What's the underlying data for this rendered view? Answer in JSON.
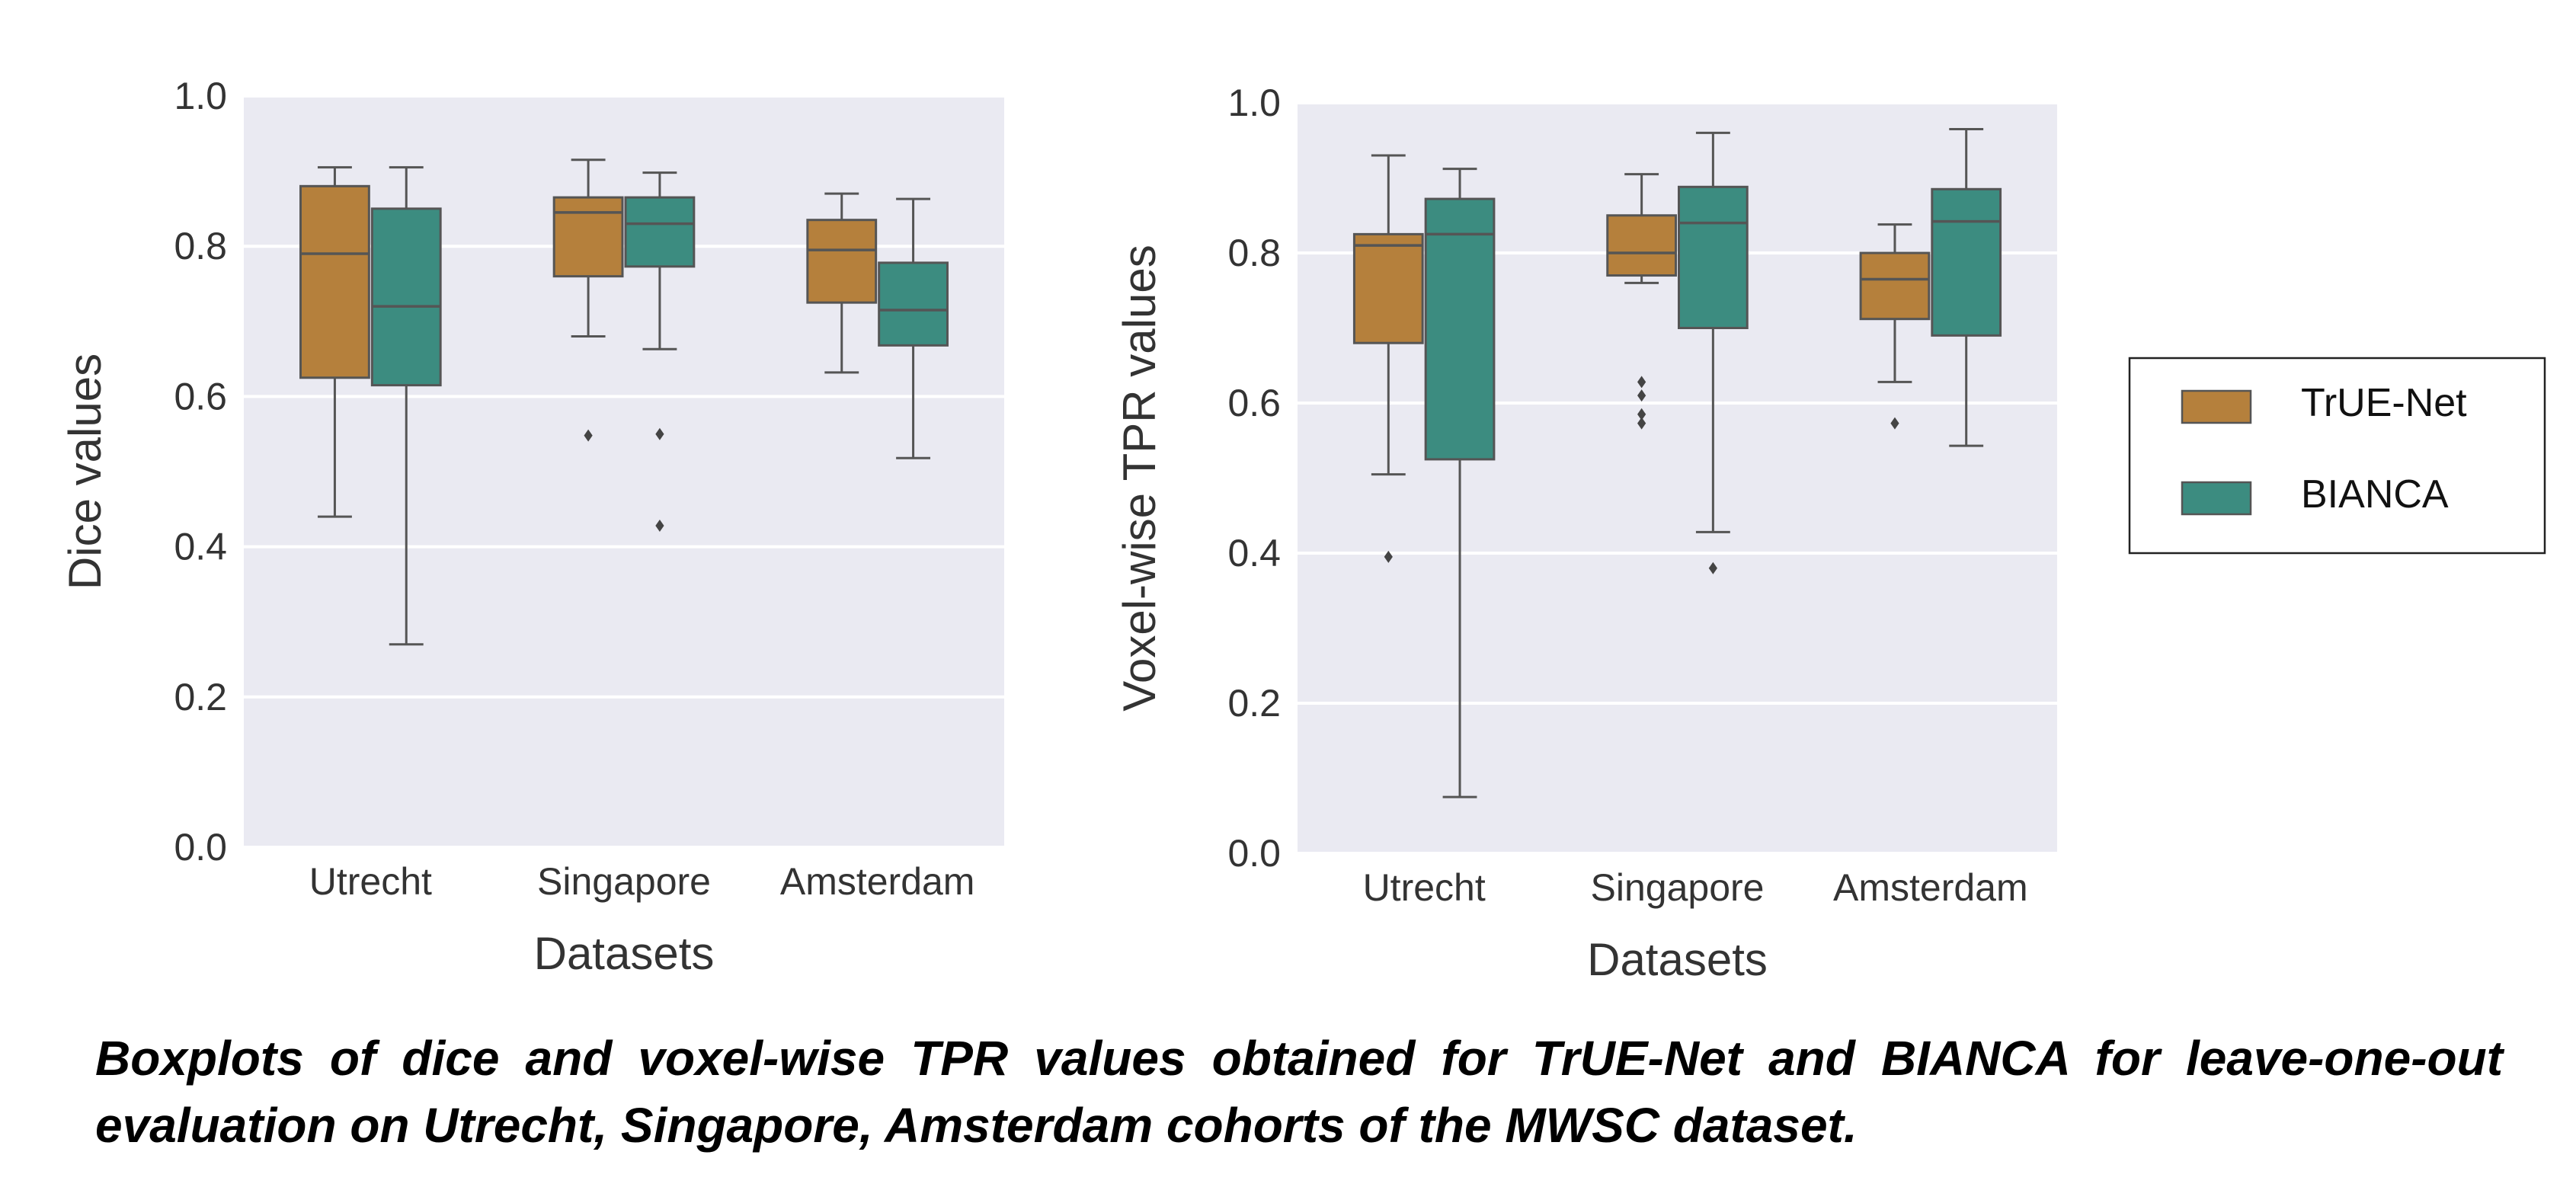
{
  "colors": {
    "true_net": "#b5803c",
    "bianca": "#3c8c80",
    "panel_bg": "#eaeaf2",
    "grid": "#ffffff",
    "whisker": "#555555"
  },
  "legend": {
    "entries": [
      "TrUE-Net",
      "BIANCA"
    ]
  },
  "caption": "Boxplots of dice and voxel-wise TPR values obtained for TrUE-Net and BIANCA for leave-one-out evaluation on Utrecht, Singapore, Amsterdam cohorts of the MWSC dataset.",
  "chart_data": [
    {
      "type": "boxplot",
      "xlabel": "Datasets",
      "ylabel": "Dice values",
      "ylim": [
        0.0,
        1.0
      ],
      "yticks": [
        "0.0",
        "0.2",
        "0.4",
        "0.6",
        "0.8",
        "1.0"
      ],
      "categories": [
        "Utrecht",
        "Singapore",
        "Amsterdam"
      ],
      "series": [
        {
          "name": "TrUE-Net",
          "boxes": [
            {
              "whislo": 0.44,
              "q1": 0.625,
              "med": 0.79,
              "q3": 0.88,
              "whishi": 0.905,
              "fliers": []
            },
            {
              "whislo": 0.68,
              "q1": 0.76,
              "med": 0.845,
              "q3": 0.865,
              "whishi": 0.915,
              "fliers": [
                0.548
              ]
            },
            {
              "whislo": 0.632,
              "q1": 0.725,
              "med": 0.795,
              "q3": 0.835,
              "whishi": 0.87,
              "fliers": []
            }
          ]
        },
        {
          "name": "BIANCA",
          "boxes": [
            {
              "whislo": 0.27,
              "q1": 0.615,
              "med": 0.72,
              "q3": 0.85,
              "whishi": 0.905,
              "fliers": []
            },
            {
              "whislo": 0.663,
              "q1": 0.773,
              "med": 0.83,
              "q3": 0.865,
              "whishi": 0.898,
              "fliers": [
                0.55,
                0.428
              ]
            },
            {
              "whislo": 0.518,
              "q1": 0.668,
              "med": 0.715,
              "q3": 0.778,
              "whishi": 0.863,
              "fliers": []
            }
          ]
        }
      ]
    },
    {
      "type": "boxplot",
      "xlabel": "Datasets",
      "ylabel": "Voxel-wise TPR values",
      "ylim": [
        0.0,
        1.0
      ],
      "yticks": [
        "0.0",
        "0.2",
        "0.4",
        "0.6",
        "0.8",
        "1.0"
      ],
      "categories": [
        "Utrecht",
        "Singapore",
        "Amsterdam"
      ],
      "series": [
        {
          "name": "TrUE-Net",
          "boxes": [
            {
              "whislo": 0.505,
              "q1": 0.68,
              "med": 0.81,
              "q3": 0.825,
              "whishi": 0.93,
              "fliers": [
                0.395
              ]
            },
            {
              "whislo": 0.76,
              "q1": 0.77,
              "med": 0.8,
              "q3": 0.85,
              "whishi": 0.905,
              "fliers": [
                0.628,
                0.61,
                0.585,
                0.573
              ]
            },
            {
              "whislo": 0.628,
              "q1": 0.712,
              "med": 0.765,
              "q3": 0.8,
              "whishi": 0.838,
              "fliers": [
                0.573
              ]
            }
          ]
        },
        {
          "name": "BIANCA",
          "boxes": [
            {
              "whislo": 0.075,
              "q1": 0.525,
              "med": 0.825,
              "q3": 0.872,
              "whishi": 0.912,
              "fliers": []
            },
            {
              "whislo": 0.428,
              "q1": 0.7,
              "med": 0.84,
              "q3": 0.888,
              "whishi": 0.96,
              "fliers": [
                0.38
              ]
            },
            {
              "whislo": 0.543,
              "q1": 0.69,
              "med": 0.842,
              "q3": 0.885,
              "whishi": 0.965,
              "fliers": []
            }
          ]
        }
      ]
    }
  ]
}
